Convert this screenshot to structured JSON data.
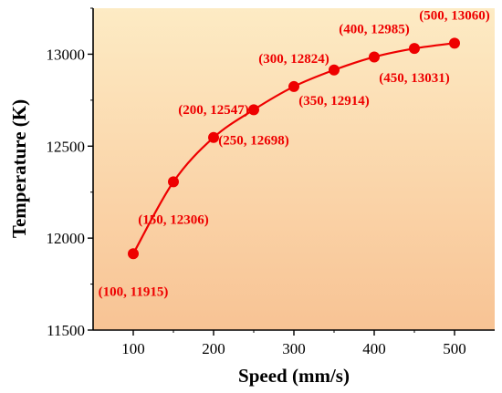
{
  "chart_data": {
    "type": "line",
    "xlabel": "Speed  (mm/s)",
    "ylabel": "Temperature  (K)",
    "xlim": [
      50,
      550
    ],
    "ylim": [
      11500,
      13250
    ],
    "x_ticks": [
      100,
      200,
      300,
      400,
      500
    ],
    "y_ticks": [
      11500,
      12000,
      12500,
      13000
    ],
    "grid": false,
    "background": "orange vertical gradient",
    "colors": {
      "series": "#ee0000",
      "bg_top": "#fdebc4",
      "bg_bottom": "#f8c394"
    },
    "series": [
      {
        "x": [
          100,
          150,
          200,
          250,
          300,
          350,
          400,
          450,
          500
        ],
        "y": [
          11915,
          12306,
          12547,
          12698,
          12824,
          12914,
          12985,
          13031,
          13060
        ]
      }
    ],
    "annotations": [
      "(100, 11915)",
      "(150, 12306)",
      "(200, 12547)",
      "(250, 12698)",
      "(300, 12824)",
      "(350, 12914)",
      "(400, 12985)",
      "(450, 13031)",
      "(500, 13060)"
    ]
  }
}
